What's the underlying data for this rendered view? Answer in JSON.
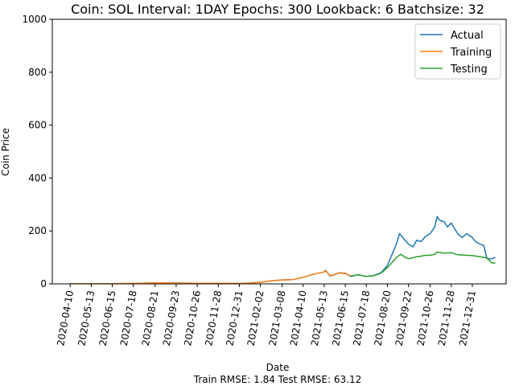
{
  "chart_data": {
    "type": "line",
    "title": "Coin: SOL Interval: 1DAY Epochs: 300 Lookback: 6 Batchsize: 32",
    "xlabel": "Date",
    "ylabel": "Coin Price",
    "footer": "Train RMSE: 1.84 Test RMSE: 63.12",
    "ylim": [
      0,
      1000
    ],
    "xlim": [
      "2020-03-13",
      "2022-02-22"
    ],
    "yticks": [
      "0",
      "200",
      "400",
      "600",
      "800",
      "1000"
    ],
    "xticks": [
      "2020-04-10",
      "2020-05-13",
      "2020-06-15",
      "2020-07-18",
      "2020-08-21",
      "2020-09-23",
      "2020-10-26",
      "2020-11-28",
      "2020-12-31",
      "2021-02-02",
      "2021-03-08",
      "2021-04-10",
      "2021-05-13",
      "2021-06-15",
      "2021-07-18",
      "2021-08-20",
      "2021-09-22",
      "2021-10-26",
      "2021-11-28",
      "2021-12-31"
    ],
    "grid": false,
    "legend_position": "top-right",
    "series": [
      {
        "name": "Actual",
        "color": "#1f77b4",
        "points": [
          [
            "2020-04-10",
            0.7
          ],
          [
            "2020-05-13",
            0.9
          ],
          [
            "2020-06-15",
            1.0
          ],
          [
            "2020-07-18",
            1.5
          ],
          [
            "2020-08-21",
            3.5
          ],
          [
            "2020-09-05",
            4.0
          ],
          [
            "2020-09-23",
            3.0
          ],
          [
            "2020-10-26",
            2.0
          ],
          [
            "2020-11-28",
            2.0
          ],
          [
            "2020-12-31",
            1.5
          ],
          [
            "2021-01-15",
            3.0
          ],
          [
            "2021-02-02",
            6.0
          ],
          [
            "2021-02-20",
            12.0
          ],
          [
            "2021-03-08",
            15.0
          ],
          [
            "2021-03-25",
            16.0
          ],
          [
            "2021-04-10",
            25.0
          ],
          [
            "2021-04-25",
            36.0
          ],
          [
            "2021-05-13",
            45.0
          ],
          [
            "2021-05-15",
            52.0
          ],
          [
            "2021-05-22",
            30.0
          ],
          [
            "2021-05-28",
            34.0
          ],
          [
            "2021-06-05",
            42.0
          ],
          [
            "2021-06-15",
            40.0
          ],
          [
            "2021-06-24",
            28.0
          ],
          [
            "2021-07-05",
            35.0
          ],
          [
            "2021-07-18",
            28.0
          ],
          [
            "2021-07-30",
            32.0
          ],
          [
            "2021-08-10",
            42.0
          ],
          [
            "2021-08-20",
            70.0
          ],
          [
            "2021-08-27",
            110.0
          ],
          [
            "2021-09-03",
            150.0
          ],
          [
            "2021-09-08",
            190.0
          ],
          [
            "2021-09-13",
            175.0
          ],
          [
            "2021-09-22",
            150.0
          ],
          [
            "2021-09-29",
            140.0
          ],
          [
            "2021-10-05",
            165.0
          ],
          [
            "2021-10-12",
            160.0
          ],
          [
            "2021-10-18",
            178.0
          ],
          [
            "2021-10-26",
            190.0
          ],
          [
            "2021-11-02",
            215.0
          ],
          [
            "2021-11-06",
            255.0
          ],
          [
            "2021-11-10",
            240.0
          ],
          [
            "2021-11-17",
            235.0
          ],
          [
            "2021-11-22",
            215.0
          ],
          [
            "2021-11-28",
            230.0
          ],
          [
            "2021-12-03",
            210.0
          ],
          [
            "2021-12-08",
            190.0
          ],
          [
            "2021-12-15",
            175.0
          ],
          [
            "2021-12-22",
            190.0
          ],
          [
            "2021-12-31",
            175.0
          ],
          [
            "2022-01-05",
            160.0
          ],
          [
            "2022-01-12",
            150.0
          ],
          [
            "2022-01-18",
            145.0
          ],
          [
            "2022-01-23",
            95.0
          ],
          [
            "2022-01-30",
            95.0
          ],
          [
            "2022-02-05",
            100.0
          ]
        ]
      },
      {
        "name": "Training",
        "color": "#ff7f0e",
        "points": [
          [
            "2020-04-10",
            0.7
          ],
          [
            "2020-05-13",
            0.9
          ],
          [
            "2020-06-15",
            1.0
          ],
          [
            "2020-07-18",
            1.5
          ],
          [
            "2020-08-21",
            3.5
          ],
          [
            "2020-09-05",
            4.0
          ],
          [
            "2020-09-23",
            3.0
          ],
          [
            "2020-10-26",
            2.0
          ],
          [
            "2020-11-28",
            2.0
          ],
          [
            "2020-12-31",
            1.5
          ],
          [
            "2021-01-15",
            3.0
          ],
          [
            "2021-02-02",
            6.0
          ],
          [
            "2021-02-20",
            12.0
          ],
          [
            "2021-03-08",
            15.0
          ],
          [
            "2021-03-25",
            16.0
          ],
          [
            "2021-04-10",
            25.0
          ],
          [
            "2021-04-25",
            36.0
          ],
          [
            "2021-05-13",
            45.0
          ],
          [
            "2021-05-15",
            50.0
          ],
          [
            "2021-05-22",
            32.0
          ],
          [
            "2021-05-28",
            34.0
          ],
          [
            "2021-06-05",
            41.0
          ],
          [
            "2021-06-15",
            39.0
          ],
          [
            "2021-06-24",
            30.0
          ]
        ]
      },
      {
        "name": "Testing",
        "color": "#2ca02c",
        "points": [
          [
            "2021-06-24",
            30.0
          ],
          [
            "2021-07-05",
            34.0
          ],
          [
            "2021-07-18",
            28.0
          ],
          [
            "2021-07-30",
            31.0
          ],
          [
            "2021-08-10",
            40.0
          ],
          [
            "2021-08-20",
            62.0
          ],
          [
            "2021-08-27",
            80.0
          ],
          [
            "2021-09-03",
            100.0
          ],
          [
            "2021-09-10",
            112.0
          ],
          [
            "2021-09-17",
            100.0
          ],
          [
            "2021-09-22",
            95.0
          ],
          [
            "2021-10-05",
            102.0
          ],
          [
            "2021-10-12",
            105.0
          ],
          [
            "2021-10-18",
            108.0
          ],
          [
            "2021-10-26",
            108.0
          ],
          [
            "2021-11-02",
            112.0
          ],
          [
            "2021-11-06",
            120.0
          ],
          [
            "2021-11-17",
            116.0
          ],
          [
            "2021-11-28",
            118.0
          ],
          [
            "2021-12-08",
            110.0
          ],
          [
            "2021-12-22",
            108.0
          ],
          [
            "2021-12-31",
            107.0
          ],
          [
            "2022-01-12",
            102.0
          ],
          [
            "2022-01-23",
            98.0
          ],
          [
            "2022-01-30",
            80.0
          ],
          [
            "2022-02-05",
            78.0
          ]
        ]
      }
    ]
  }
}
